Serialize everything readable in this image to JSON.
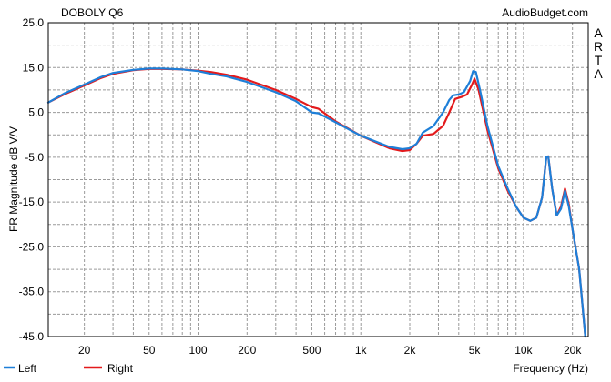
{
  "chart_data": {
    "type": "line",
    "title": "DOBOLY Q6",
    "source": "AudioBudget.com",
    "side_label": "ARTA",
    "xlabel": "Frequency (Hz)",
    "ylabel": "FR Magnitude dB V/V",
    "x_scale": "log",
    "xlim": [
      12,
      25000
    ],
    "ylim": [
      -45,
      25
    ],
    "grid": true,
    "x_tick_labels": [
      {
        "value": 20,
        "label": "20"
      },
      {
        "value": 50,
        "label": "50"
      },
      {
        "value": 100,
        "label": "100"
      },
      {
        "value": 200,
        "label": "200"
      },
      {
        "value": 500,
        "label": "500"
      },
      {
        "value": 1000,
        "label": "1k"
      },
      {
        "value": 2000,
        "label": "2k"
      },
      {
        "value": 5000,
        "label": "5k"
      },
      {
        "value": 10000,
        "label": "10k"
      },
      {
        "value": 20000,
        "label": "20k"
      }
    ],
    "y_tick_labels": [
      "25.0",
      "15.0",
      "5.0",
      "-5.0",
      "-15.0",
      "-25.0",
      "-35.0",
      "-45.0"
    ],
    "y_ticks": [
      25,
      15,
      5,
      -5,
      -15,
      -25,
      -35,
      -45
    ],
    "legend_position": "bottom-left",
    "series": [
      {
        "name": "Left",
        "color": "#1e7fd8",
        "points": [
          [
            12,
            7.2
          ],
          [
            15,
            9.2
          ],
          [
            20,
            11.2
          ],
          [
            25,
            12.8
          ],
          [
            30,
            13.8
          ],
          [
            40,
            14.5
          ],
          [
            50,
            14.8
          ],
          [
            60,
            14.8
          ],
          [
            80,
            14.6
          ],
          [
            100,
            14.2
          ],
          [
            120,
            13.6
          ],
          [
            150,
            13.0
          ],
          [
            200,
            11.8
          ],
          [
            300,
            9.5
          ],
          [
            400,
            7.5
          ],
          [
            500,
            5.0
          ],
          [
            550,
            4.8
          ],
          [
            700,
            2.8
          ],
          [
            1000,
            -0.2
          ],
          [
            1500,
            -2.7
          ],
          [
            1800,
            -3.2
          ],
          [
            2000,
            -3.0
          ],
          [
            2200,
            -2.0
          ],
          [
            2400,
            0.5
          ],
          [
            2800,
            2.0
          ],
          [
            3200,
            5.0
          ],
          [
            3500,
            7.8
          ],
          [
            3700,
            8.8
          ],
          [
            4000,
            9.0
          ],
          [
            4300,
            9.5
          ],
          [
            4700,
            12.0
          ],
          [
            4900,
            14.2
          ],
          [
            5100,
            14.0
          ],
          [
            5400,
            10.0
          ],
          [
            6000,
            2.0
          ],
          [
            7000,
            -7.0
          ],
          [
            8000,
            -12.0
          ],
          [
            9000,
            -16.0
          ],
          [
            10000,
            -18.5
          ],
          [
            11000,
            -19.2
          ],
          [
            12000,
            -18.5
          ],
          [
            13000,
            -14.0
          ],
          [
            13800,
            -5.0
          ],
          [
            14200,
            -4.8
          ],
          [
            15000,
            -12.0
          ],
          [
            16000,
            -18.0
          ],
          [
            17000,
            -16.5
          ],
          [
            18000,
            -12.5
          ],
          [
            19000,
            -16.0
          ],
          [
            20000,
            -21.0
          ],
          [
            22000,
            -30.0
          ],
          [
            24000,
            -45.0
          ]
        ]
      },
      {
        "name": "Right",
        "color": "#e31a1c",
        "points": [
          [
            12,
            7.2
          ],
          [
            15,
            9.0
          ],
          [
            20,
            11.0
          ],
          [
            25,
            12.6
          ],
          [
            30,
            13.6
          ],
          [
            40,
            14.4
          ],
          [
            50,
            14.7
          ],
          [
            60,
            14.7
          ],
          [
            80,
            14.6
          ],
          [
            100,
            14.3
          ],
          [
            120,
            14.0
          ],
          [
            150,
            13.4
          ],
          [
            200,
            12.3
          ],
          [
            300,
            10.0
          ],
          [
            400,
            8.0
          ],
          [
            500,
            6.2
          ],
          [
            550,
            5.8
          ],
          [
            700,
            3.0
          ],
          [
            1000,
            -0.2
          ],
          [
            1500,
            -3.0
          ],
          [
            1800,
            -3.6
          ],
          [
            2000,
            -3.4
          ],
          [
            2200,
            -2.0
          ],
          [
            2400,
            -0.2
          ],
          [
            2800,
            0.2
          ],
          [
            3200,
            2.0
          ],
          [
            3500,
            5.0
          ],
          [
            3800,
            8.0
          ],
          [
            4200,
            8.5
          ],
          [
            4500,
            9.0
          ],
          [
            4800,
            11.0
          ],
          [
            5000,
            12.5
          ],
          [
            5300,
            10.0
          ],
          [
            6000,
            1.0
          ],
          [
            7000,
            -7.5
          ],
          [
            8000,
            -12.5
          ],
          [
            9000,
            -16.0
          ],
          [
            10000,
            -18.5
          ],
          [
            11000,
            -19.2
          ],
          [
            12000,
            -18.5
          ],
          [
            13000,
            -14.0
          ],
          [
            13800,
            -5.0
          ],
          [
            14200,
            -4.8
          ],
          [
            15000,
            -12.0
          ],
          [
            16000,
            -18.0
          ],
          [
            17000,
            -16.0
          ],
          [
            18000,
            -12.0
          ],
          [
            19000,
            -15.5
          ],
          [
            20000,
            -21.0
          ],
          [
            22000,
            -30.0
          ],
          [
            24000,
            -45.0
          ]
        ]
      }
    ]
  }
}
